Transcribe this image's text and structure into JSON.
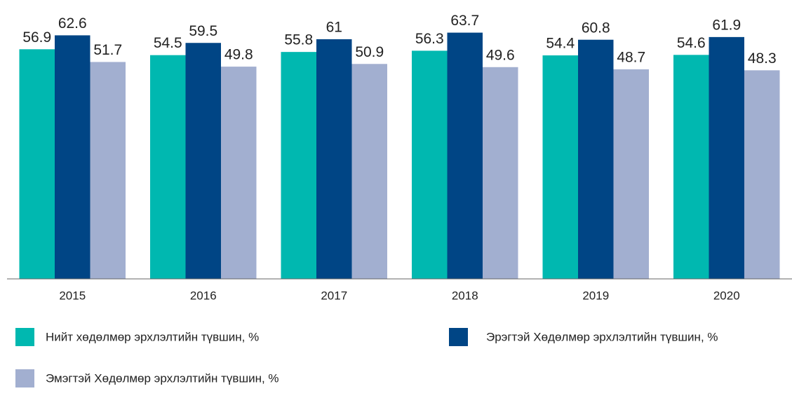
{
  "chart_data": {
    "type": "bar",
    "categories": [
      "2015",
      "2016",
      "2017",
      "2018",
      "2019",
      "2020"
    ],
    "series": [
      {
        "name": "Нийт хөдөлмөр эрхлэлтийн түвшин, %",
        "color": "#00b8b0",
        "values": [
          56.9,
          54.5,
          55.8,
          56.3,
          54.4,
          54.6
        ]
      },
      {
        "name": "Эрэгтэй Хөдөлмөр эрхлэлтийн түвшин, %",
        "color": "#004585",
        "values": [
          62.6,
          59.5,
          61,
          63.7,
          60.8,
          61.9
        ]
      },
      {
        "name": "Эмэгтэй Хөдөлмөр эрхлэлтийн түвшин, %",
        "color": "#a2afd0",
        "values": [
          51.7,
          49.8,
          50.9,
          49.6,
          48.7,
          48.3
        ]
      }
    ],
    "ylim": [
      -37,
      70
    ]
  }
}
